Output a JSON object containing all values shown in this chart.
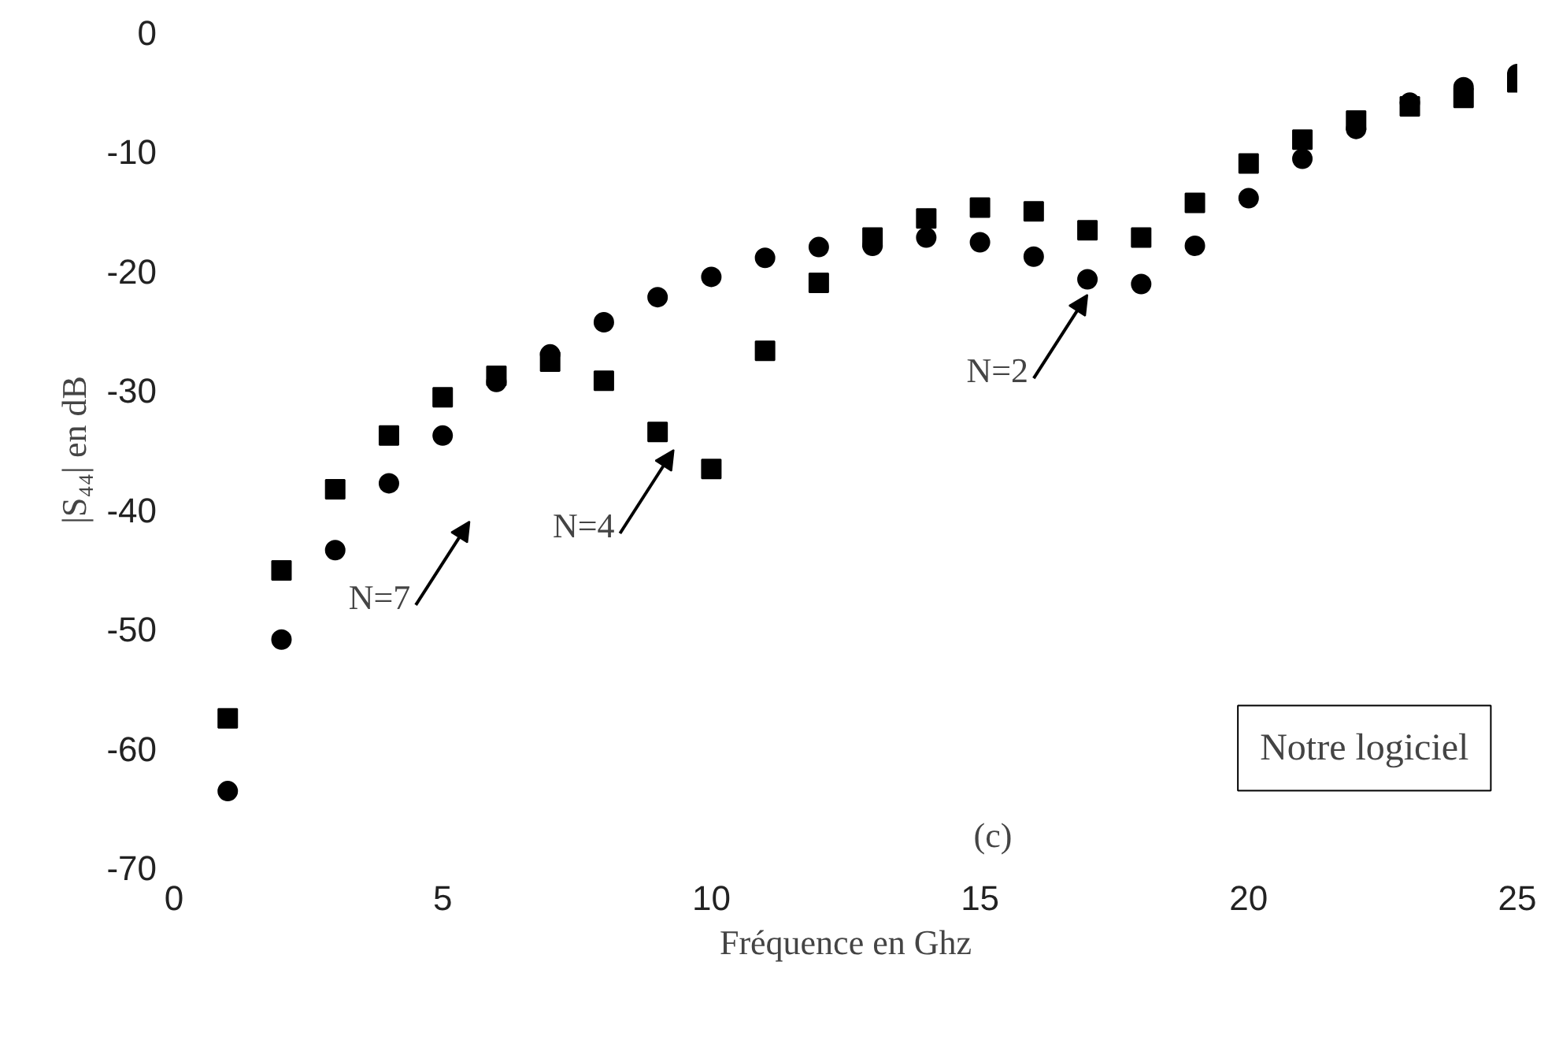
{
  "chart_data": {
    "type": "scatter",
    "xlabel": "Fréquence en Ghz",
    "ylabel": "|S₄₄| en dB",
    "x": [
      1,
      2,
      3,
      4,
      5,
      6,
      7,
      8,
      9,
      10,
      11,
      12,
      13,
      14,
      15,
      16,
      17,
      18,
      19,
      20,
      21,
      22,
      23,
      24,
      25
    ],
    "series": [
      {
        "color": "#000000",
        "marker": "circle",
        "values": [
          -63.6,
          -50.9,
          -43.4,
          -37.8,
          -33.8,
          -29.3,
          -27,
          -24.3,
          -22.2,
          -20.5,
          -18.9,
          -18,
          -17.9,
          -17.2,
          -17.6,
          -18.8,
          -20.7,
          -21.1,
          -17.9,
          -13.9,
          -10.6,
          -8.1,
          -5.9,
          -4.6,
          -3.5
        ]
      },
      {
        "color": "#000000",
        "marker": "square",
        "values": [
          -57.5,
          -45.1,
          -38.3,
          -33.8,
          -30.6,
          -28.8,
          -27.6,
          -29.2,
          -33.5,
          -36.6,
          -26.7,
          -21,
          -17.2,
          -15.6,
          -14.7,
          -15,
          -16.6,
          -17.2,
          -14.3,
          -11,
          -9,
          -7.4,
          -6.2,
          -5.5,
          -4.2
        ]
      }
    ],
    "xlim": [
      0,
      25
    ],
    "xticks": [
      0,
      5,
      10,
      15,
      20,
      25
    ],
    "ylim": [
      -70,
      0
    ],
    "yticks": [
      -70,
      -60,
      -50,
      -40,
      -30,
      -20,
      -10,
      0
    ],
    "annotations": [
      "N=7",
      "N=4",
      {
        "text": "N=2",
        "x": 17,
        "y": -20.7
      },
      "Notre logiciel",
      "(c)"
    ]
  }
}
